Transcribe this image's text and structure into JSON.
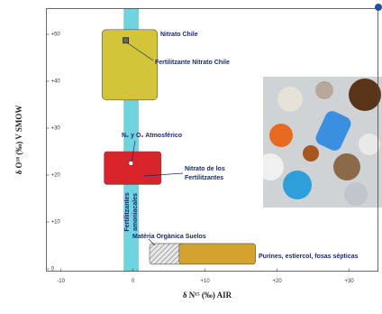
{
  "chart_data": {
    "type": "region",
    "xlabel": "δ N¹⁵ (‰) AIR",
    "ylabel": "δ O¹⁸ (‰) V SMOW",
    "xlim": [
      -12,
      34
    ],
    "ylim": [
      -0.5,
      55.5
    ],
    "xticks": [
      -10,
      0,
      {
        "value": 10,
        "label": "+10"
      },
      {
        "value": 20,
        "label": "+20"
      },
      {
        "value": 30,
        "label": "+30"
      }
    ],
    "yticks": [
      0,
      {
        "value": 10,
        "label": "+10"
      },
      {
        "value": 20,
        "label": "+20"
      },
      {
        "value": 30,
        "label": "+30"
      },
      {
        "value": 40,
        "label": "+40"
      },
      {
        "value": 50,
        "label": "+50"
      }
    ],
    "regions": [
      {
        "name": [
          "Fertilitzantes",
          "amoniacales"
        ],
        "color": "#6fd3e0",
        "x": [
          -1.3,
          0.8
        ],
        "y": [
          -0.5,
          55.5
        ]
      },
      {
        "name": [
          "Nitrato Chile"
        ],
        "color": "#d2c53a",
        "x": [
          -4.3,
          3.4
        ],
        "y": [
          36,
          51
        ]
      },
      {
        "name": [
          "Nitrato de los",
          "Fertilitzantes"
        ],
        "color": "#d8242a",
        "x": [
          -4,
          3.9
        ],
        "y": [
          18,
          25
        ]
      },
      {
        "name": [
          "Matèria Orgànica Suelos"
        ],
        "color": "#d0d0d0",
        "x": [
          2.3,
          7.3
        ],
        "y": [
          1,
          5.4
        ],
        "hatch": true
      },
      {
        "name": [
          "Purines, estiercol, fosas sépticas"
        ],
        "color": "#d4a22e",
        "x": [
          6.4,
          17
        ],
        "y": [
          1,
          5.4
        ]
      }
    ],
    "points": [
      {
        "name": "Fertilitzante Nitrato Chile",
        "x": -1,
        "y": 48.7,
        "marker": "square",
        "color": "#666666"
      },
      {
        "name": "N₂ y O₂ Atmosférico",
        "x": -0.3,
        "y": 22.5,
        "marker": "circle",
        "color": "#ffffff"
      }
    ]
  }
}
